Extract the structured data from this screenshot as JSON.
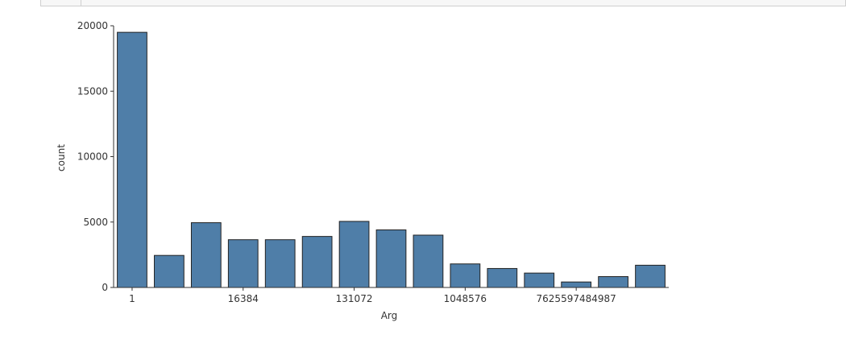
{
  "chart_data": {
    "type": "bar",
    "xlabel": "Arg",
    "ylabel": "count",
    "ylim": [
      0,
      20000
    ],
    "yticks": [
      0,
      5000,
      10000,
      15000,
      20000
    ],
    "categories": [
      "1",
      "",
      "",
      "16384",
      "",
      "",
      "131072",
      "",
      "",
      "1048576",
      "",
      "",
      "7625597484987",
      "",
      ""
    ],
    "values": [
      19500,
      2450,
      4950,
      3650,
      3650,
      3900,
      5050,
      4400,
      4000,
      1800,
      1450,
      1100,
      420,
      830,
      1700
    ],
    "bar_color": "#4f7ea8",
    "bar_edge": "#222222",
    "grid": false,
    "legend": "none"
  }
}
